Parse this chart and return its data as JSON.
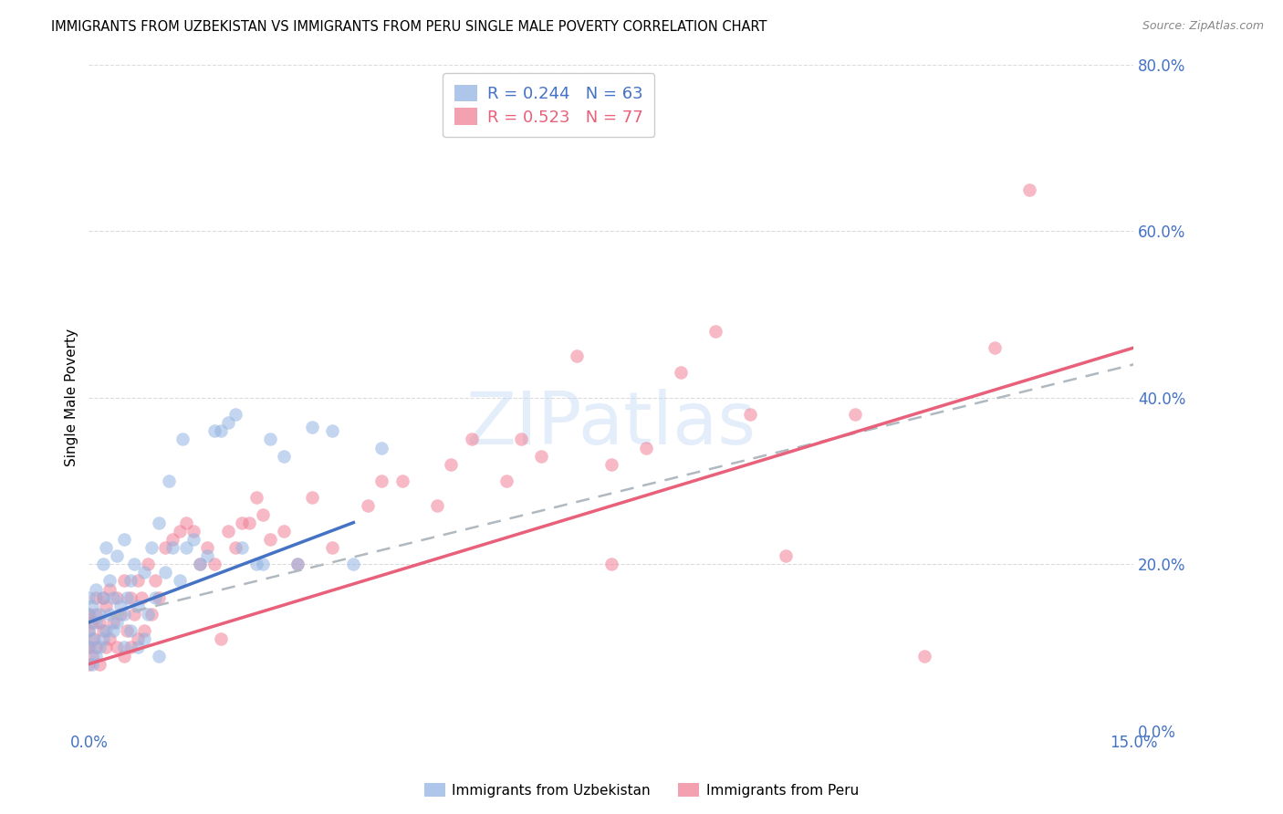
{
  "title": "IMMIGRANTS FROM UZBEKISTAN VS IMMIGRANTS FROM PERU SINGLE MALE POVERTY CORRELATION CHART",
  "source": "Source: ZipAtlas.com",
  "ylabel_label": "Single Male Poverty",
  "legend_r1": "R = 0.244   N = 63",
  "legend_r2": "R = 0.523   N = 77",
  "color_uzbekistan": "#92b4e3",
  "color_peru": "#f08096",
  "color_uzbekistan_line": "#4472c4",
  "color_peru_line": "#e8607a",
  "color_axis_labels": "#4472c4",
  "color_grid": "#cccccc",
  "background_color": "#ffffff",
  "xlim": [
    0.0,
    15.0
  ],
  "ylim": [
    0.0,
    80.0
  ],
  "x_ticks": [
    0.0,
    15.0
  ],
  "y_ticks": [
    0.0,
    20.0,
    40.0,
    60.0,
    80.0
  ],
  "uzbek_line": [
    0.0,
    3.8,
    13.0,
    25.0
  ],
  "peru_line": [
    0.0,
    15.0,
    8.0,
    46.0
  ],
  "dash_line": [
    0.0,
    15.0,
    13.0,
    44.0
  ],
  "uzbekistan_scatter_x": [
    0.0,
    0.0,
    0.0,
    0.0,
    0.05,
    0.05,
    0.05,
    0.1,
    0.1,
    0.1,
    0.15,
    0.15,
    0.2,
    0.2,
    0.2,
    0.25,
    0.25,
    0.3,
    0.3,
    0.35,
    0.35,
    0.4,
    0.4,
    0.45,
    0.5,
    0.5,
    0.5,
    0.55,
    0.6,
    0.6,
    0.65,
    0.7,
    0.7,
    0.8,
    0.8,
    0.85,
    0.9,
    0.95,
    1.0,
    1.0,
    1.1,
    1.15,
    1.2,
    1.3,
    1.35,
    1.4,
    1.5,
    1.6,
    1.7,
    1.8,
    1.9,
    2.0,
    2.1,
    2.2,
    2.4,
    2.5,
    2.6,
    2.8,
    3.0,
    3.2,
    3.5,
    3.8,
    4.2
  ],
  "uzbekistan_scatter_y": [
    10.0,
    12.0,
    14.0,
    16.0,
    8.0,
    11.0,
    15.0,
    9.0,
    13.0,
    17.0,
    10.0,
    14.0,
    11.0,
    16.0,
    20.0,
    12.0,
    22.0,
    14.0,
    18.0,
    12.0,
    16.0,
    13.0,
    21.0,
    15.0,
    10.0,
    14.0,
    23.0,
    16.0,
    12.0,
    18.0,
    20.0,
    10.0,
    15.0,
    11.0,
    19.0,
    14.0,
    22.0,
    16.0,
    9.0,
    25.0,
    19.0,
    30.0,
    22.0,
    18.0,
    35.0,
    22.0,
    23.0,
    20.0,
    21.0,
    36.0,
    36.0,
    37.0,
    38.0,
    22.0,
    20.0,
    20.0,
    35.0,
    33.0,
    20.0,
    36.5,
    36.0,
    20.0,
    34.0
  ],
  "peru_scatter_x": [
    0.0,
    0.0,
    0.0,
    0.0,
    0.05,
    0.05,
    0.08,
    0.1,
    0.1,
    0.1,
    0.15,
    0.15,
    0.2,
    0.2,
    0.25,
    0.25,
    0.3,
    0.3,
    0.35,
    0.4,
    0.4,
    0.45,
    0.5,
    0.5,
    0.55,
    0.6,
    0.6,
    0.65,
    0.7,
    0.7,
    0.75,
    0.8,
    0.85,
    0.9,
    0.95,
    1.0,
    1.1,
    1.2,
    1.3,
    1.4,
    1.5,
    1.6,
    1.7,
    1.8,
    1.9,
    2.0,
    2.1,
    2.2,
    2.3,
    2.4,
    2.5,
    2.6,
    2.8,
    3.0,
    3.2,
    3.5,
    4.0,
    4.5,
    5.0,
    5.5,
    6.0,
    6.5,
    7.0,
    7.5,
    8.5,
    9.0,
    10.0,
    11.0,
    12.0,
    13.0,
    13.5,
    4.2,
    5.2,
    6.2,
    7.5,
    8.0,
    9.5
  ],
  "peru_scatter_y": [
    8.0,
    10.0,
    12.0,
    14.0,
    9.0,
    13.0,
    11.0,
    10.0,
    14.0,
    16.0,
    8.0,
    13.0,
    12.0,
    16.0,
    10.0,
    15.0,
    11.0,
    17.0,
    13.0,
    10.0,
    16.0,
    14.0,
    9.0,
    18.0,
    12.0,
    10.0,
    16.0,
    14.0,
    11.0,
    18.0,
    16.0,
    12.0,
    20.0,
    14.0,
    18.0,
    16.0,
    22.0,
    23.0,
    24.0,
    25.0,
    24.0,
    20.0,
    22.0,
    20.0,
    11.0,
    24.0,
    22.0,
    25.0,
    25.0,
    28.0,
    26.0,
    23.0,
    24.0,
    20.0,
    28.0,
    22.0,
    27.0,
    30.0,
    27.0,
    35.0,
    30.0,
    33.0,
    45.0,
    20.0,
    43.0,
    48.0,
    21.0,
    38.0,
    9.0,
    46.0,
    65.0,
    30.0,
    32.0,
    35.0,
    32.0,
    34.0,
    38.0
  ]
}
